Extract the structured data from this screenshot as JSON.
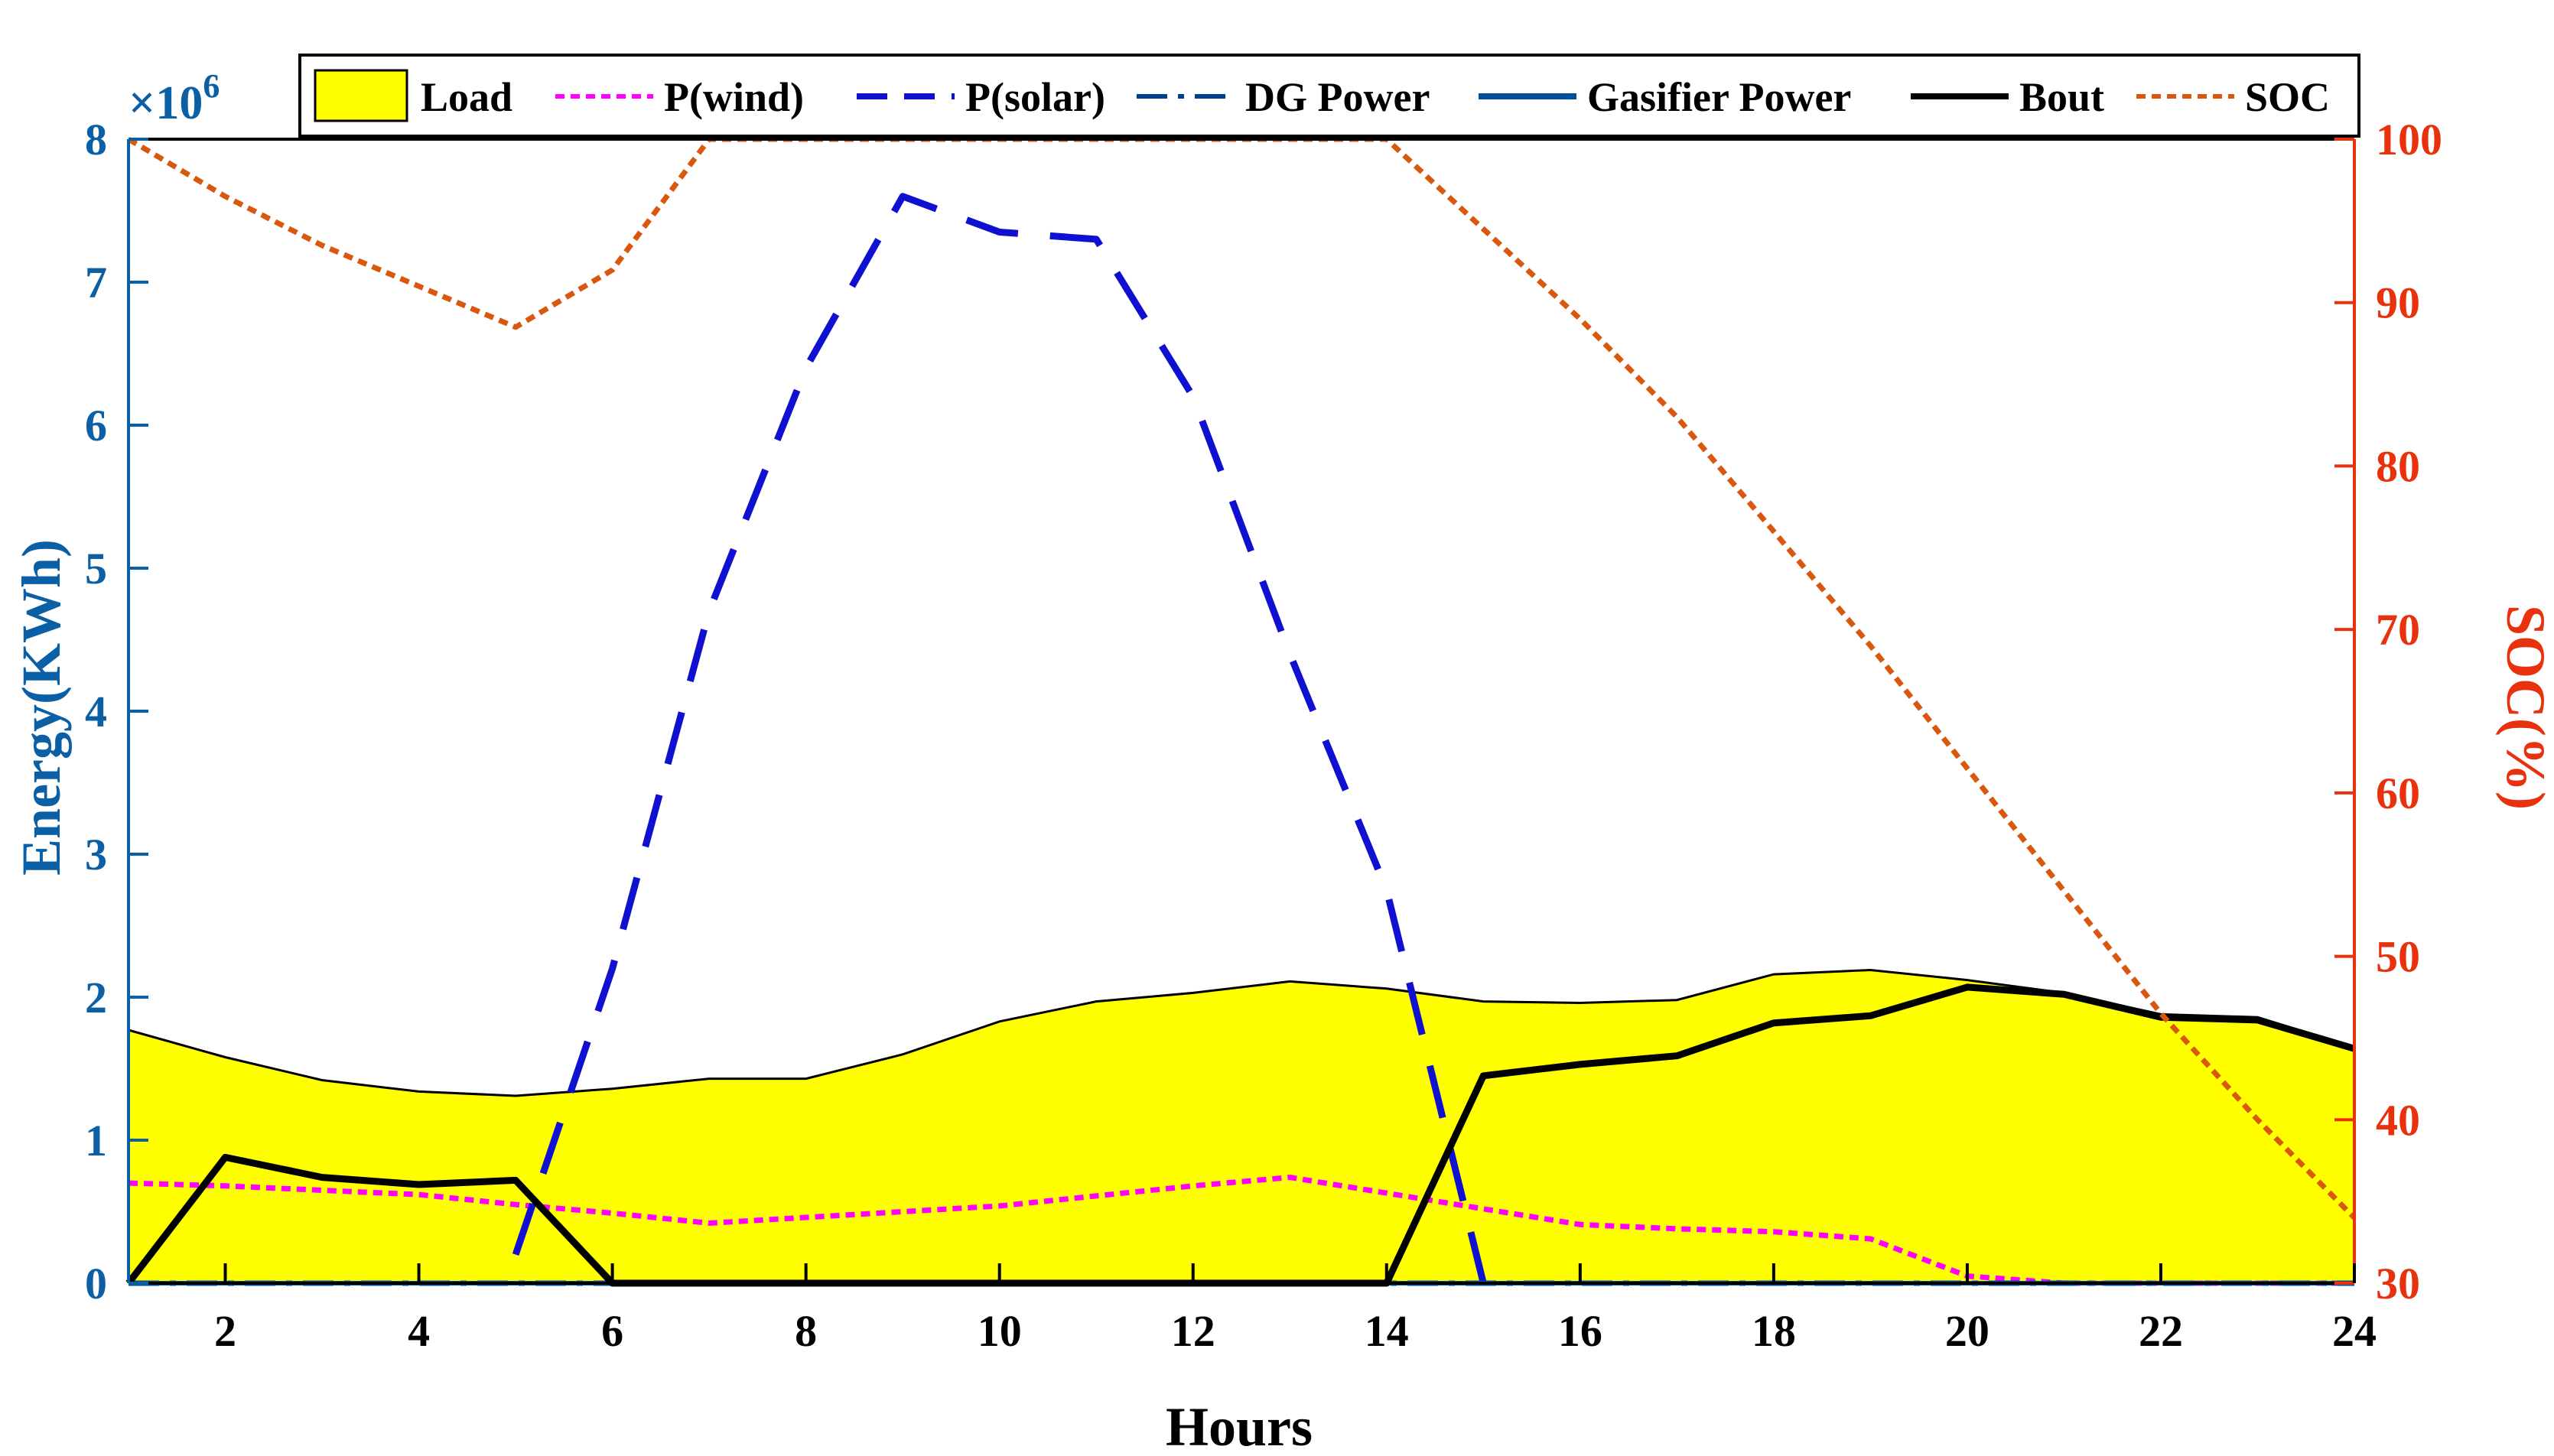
{
  "chart_data": {
    "type": "line",
    "xlabel": "Hours",
    "ylabel_left": "Energy(KWh)",
    "ylabel_right": "SOC(%)",
    "left_exponent": "×10",
    "left_exponent_power": "6",
    "xlim": [
      1,
      24
    ],
    "ylim_left": [
      0,
      8
    ],
    "ylim_right": [
      30,
      100
    ],
    "xticks": [
      2,
      4,
      6,
      8,
      10,
      12,
      14,
      16,
      18,
      20,
      22,
      24
    ],
    "yticks_left": [
      0,
      1,
      2,
      3,
      4,
      5,
      6,
      7,
      8
    ],
    "yticks_right": [
      30,
      40,
      50,
      60,
      70,
      80,
      90,
      100
    ],
    "x": [
      1,
      2,
      3,
      4,
      5,
      6,
      7,
      8,
      9,
      10,
      11,
      12,
      13,
      14,
      15,
      16,
      17,
      18,
      19,
      20,
      21,
      22,
      23,
      24
    ],
    "series": [
      {
        "name": "Load",
        "style": "area",
        "color": "#ffff00",
        "axis": "left",
        "values": [
          1.77,
          1.58,
          1.42,
          1.34,
          1.31,
          1.36,
          1.43,
          1.43,
          1.6,
          1.83,
          1.97,
          2.03,
          2.11,
          2.06,
          1.97,
          1.96,
          1.98,
          2.16,
          2.19,
          2.12,
          2.03,
          1.88,
          1.86,
          1.65
        ]
      },
      {
        "name": "P(wind)",
        "style": "dotted",
        "color": "#ff00ff",
        "axis": "left",
        "values": [
          0.7,
          0.68,
          0.65,
          0.62,
          0.55,
          0.49,
          0.42,
          0.46,
          0.5,
          0.54,
          0.61,
          0.68,
          0.74,
          0.63,
          0.52,
          0.41,
          0.38,
          0.36,
          0.31,
          0.05,
          0.0,
          0.0,
          0.0,
          0.0
        ]
      },
      {
        "name": "P(solar)",
        "style": "dashed",
        "color": "#1010d0",
        "axis": "left",
        "x": [
          5,
          6,
          7,
          8,
          9,
          10,
          11,
          12,
          13,
          14,
          15
        ],
        "values": [
          0.2,
          2.2,
          4.7,
          6.4,
          7.6,
          7.35,
          7.3,
          6.2,
          4.4,
          2.75,
          0.0
        ]
      },
      {
        "name": "DG Power",
        "style": "dashdot",
        "color": "#003f8a",
        "axis": "left",
        "values": [
          0,
          0,
          0,
          0,
          0,
          0,
          0,
          0,
          0,
          0,
          0,
          0,
          0,
          0,
          0,
          0,
          0,
          0,
          0,
          0,
          0,
          0,
          0,
          0
        ]
      },
      {
        "name": "Gasifier Power",
        "style": "solid",
        "color": "#0050a0",
        "axis": "left",
        "values": [
          0,
          0,
          0,
          0,
          0,
          0,
          0,
          0,
          0,
          0,
          0,
          0,
          0,
          0,
          0,
          0,
          0,
          0,
          0,
          0,
          0,
          0,
          0,
          0
        ]
      },
      {
        "name": "Bout",
        "style": "solid",
        "color": "#000000",
        "axis": "left",
        "values": [
          0,
          0.88,
          0.74,
          0.69,
          0.72,
          0,
          0,
          0,
          0,
          0,
          0,
          0,
          0,
          0,
          1.45,
          1.53,
          1.59,
          1.82,
          1.87,
          2.07,
          2.02,
          1.86,
          1.84,
          1.64
        ]
      },
      {
        "name": "SOC",
        "style": "dotted",
        "color": "#d9580f",
        "axis": "right",
        "values": [
          100,
          96.5,
          93.5,
          91,
          88.5,
          92,
          100,
          100,
          100,
          100,
          100,
          100,
          100,
          100,
          94.5,
          89,
          83,
          76,
          69,
          61.5,
          54,
          46.5,
          40,
          34
        ]
      }
    ],
    "legend": [
      "Load",
      "P(wind)",
      "P(solar)",
      "DG Power",
      "Gasifier Power",
      "Bout",
      "SOC"
    ],
    "legend_position": "top",
    "colors": {
      "left_axis": "#0b5fa5",
      "right_axis": "#e8320e",
      "axes": "#000000"
    }
  }
}
